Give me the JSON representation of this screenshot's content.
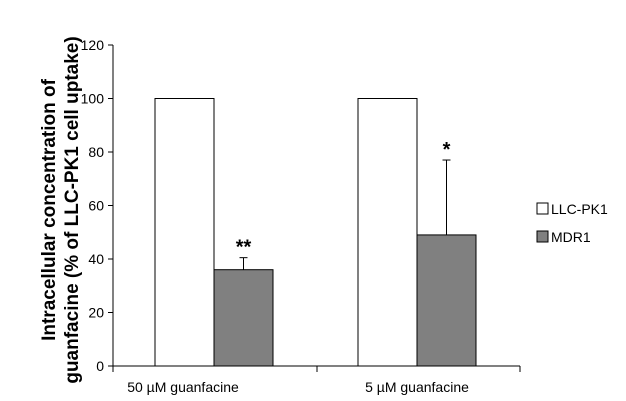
{
  "chart_data": {
    "type": "bar",
    "title": "",
    "xlabel": "",
    "ylabel_line1": "Intracellular concentration of",
    "ylabel_line2": "guanfacine (% of LLC-PK1 cell uptake)",
    "ylim": [
      0,
      120
    ],
    "yticks": [
      0,
      20,
      40,
      60,
      80,
      100,
      120
    ],
    "categories": [
      "50 µM guanfacine",
      "5 µM guanfacine"
    ],
    "series": [
      {
        "name": "LLC-PK1",
        "values": [
          100,
          100
        ],
        "errors": [
          0,
          0
        ],
        "color": "#ffffff"
      },
      {
        "name": "MDR1",
        "values": [
          36,
          49
        ],
        "errors": [
          4.5,
          28
        ],
        "color": "#808080"
      }
    ],
    "annotations": [
      "**",
      "*"
    ],
    "legend": "right",
    "grid": false
  }
}
